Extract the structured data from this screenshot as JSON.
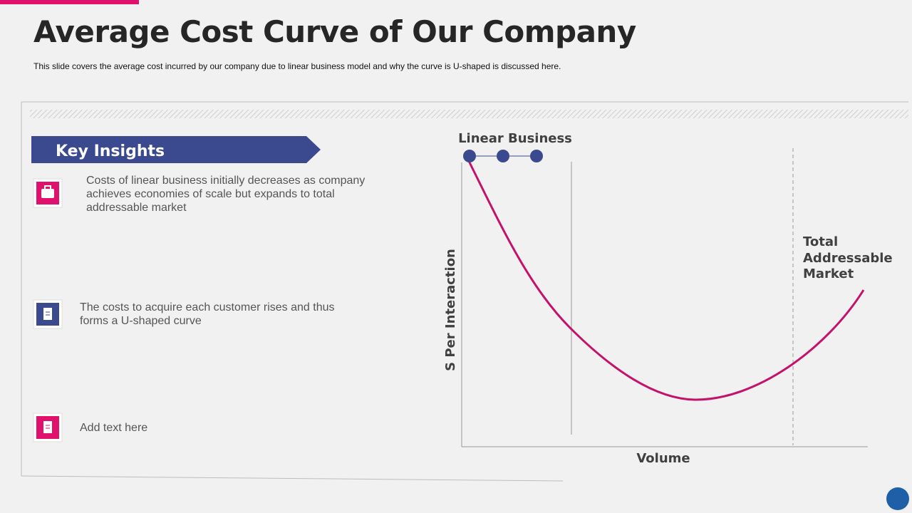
{
  "header": {
    "title": "Average Cost Curve of Our Company",
    "subtitle": "This slide covers the average  cost incurred  by our company due to linear business model and why the curve  is U-shaped  is discussed here."
  },
  "insights": {
    "heading": "Key Insights",
    "items": [
      "Costs of linear business initially decreases as company achieves economies of scale but expands to total addressable market",
      "The costs to acquire each customer rises and thus forms a U-shaped curve",
      "Add text here"
    ]
  },
  "diagram": {
    "top_label": "Linear Business",
    "right_label": [
      "Total",
      "Addressable",
      "Market"
    ],
    "y_axis_label": "S Per Interaction",
    "x_axis_label": "Volume"
  }
}
